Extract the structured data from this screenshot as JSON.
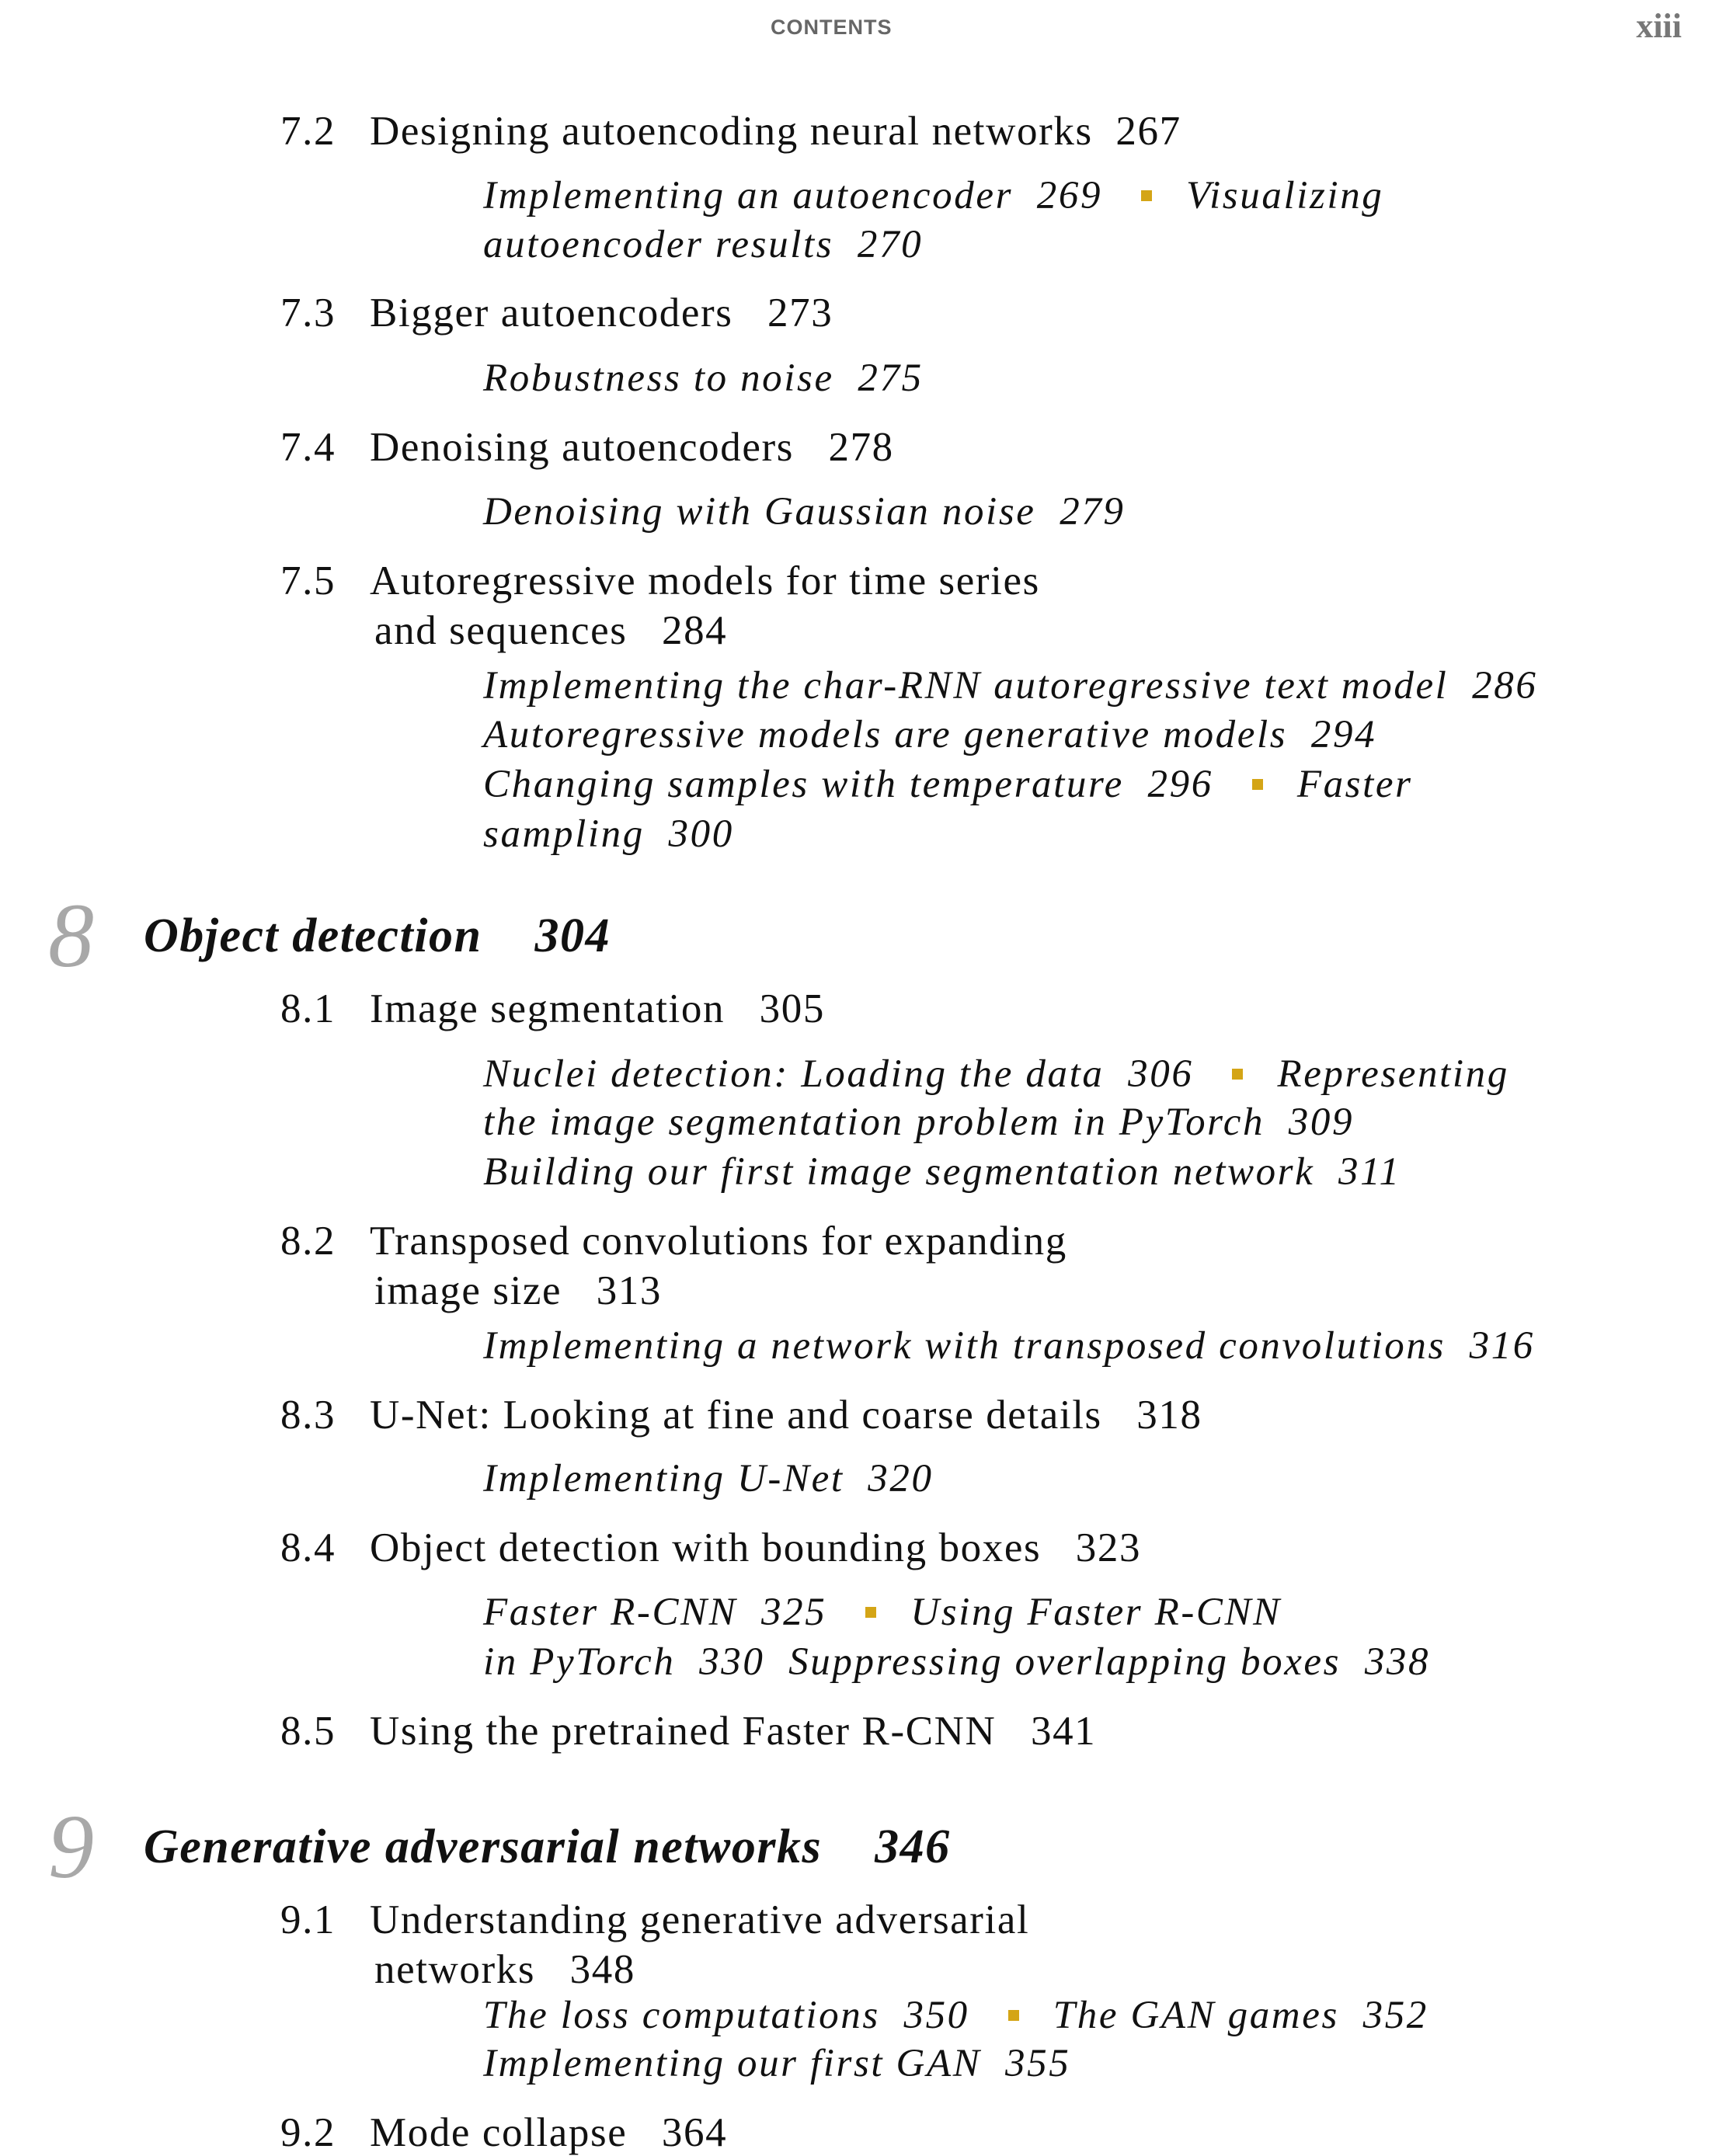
{
  "header": {
    "running_title": "CONTENTS",
    "page_number": "xiii"
  },
  "accent_color": "#d4a516",
  "sections_ch7": [
    {
      "number": "7.2",
      "title": "Designing autoencoding neural networks  267",
      "topics": [
        [
          "Implementing an autoencoder  269",
          "Visualizing"
        ],
        [
          "autoencoder results  270"
        ]
      ]
    },
    {
      "number": "7.3",
      "title": "Bigger autoencoders   273",
      "topics": [
        [
          "Robustness to noise  275"
        ]
      ]
    },
    {
      "number": "7.4",
      "title": "Denoising autoencoders   278",
      "topics": [
        [
          "Denoising with Gaussian noise  279"
        ]
      ]
    },
    {
      "number": "7.5",
      "title": "Autoregressive models for time series",
      "title_cont": "and sequences   284",
      "topics": [
        [
          "Implementing the char-RNN autoregressive text model  286"
        ],
        [
          "Autoregressive models are generative models  294"
        ],
        [
          "Changing samples with temperature  296",
          "Faster"
        ],
        [
          "sampling  300"
        ]
      ]
    }
  ],
  "chapter8": {
    "number": "8",
    "title": "Object detection    304",
    "sections": [
      {
        "number": "8.1",
        "title": "Image segmentation   305",
        "topics": [
          [
            "Nuclei detection: Loading the data  306",
            "Representing"
          ],
          [
            "the image segmentation problem in PyTorch  309"
          ],
          [
            "Building our first image segmentation network  311"
          ]
        ]
      },
      {
        "number": "8.2",
        "title": "Transposed convolutions for expanding",
        "title_cont": "image size   313",
        "topics": [
          [
            "Implementing a network with transposed convolutions  316"
          ]
        ]
      },
      {
        "number": "8.3",
        "title": "U-Net: Looking at fine and coarse details   318",
        "topics": [
          [
            "Implementing U-Net  320"
          ]
        ]
      },
      {
        "number": "8.4",
        "title": "Object detection with bounding boxes   323",
        "topics": [
          [
            "Faster R-CNN  325",
            "Using Faster R-CNN"
          ],
          [
            "in PyTorch  330  Suppressing overlapping boxes  338"
          ]
        ]
      },
      {
        "number": "8.5",
        "title": "Using the pretrained Faster R-CNN   341"
      }
    ]
  },
  "chapter9": {
    "number": "9",
    "title": "Generative adversarial networks    346",
    "sections": [
      {
        "number": "9.1",
        "title": "Understanding generative adversarial",
        "title_cont": "networks   348",
        "topics": [
          [
            "The loss computations  350",
            "The GAN games  352"
          ],
          [
            "Implementing our first GAN  355"
          ]
        ]
      },
      {
        "number": "9.2",
        "title": "Mode collapse   364"
      }
    ]
  }
}
